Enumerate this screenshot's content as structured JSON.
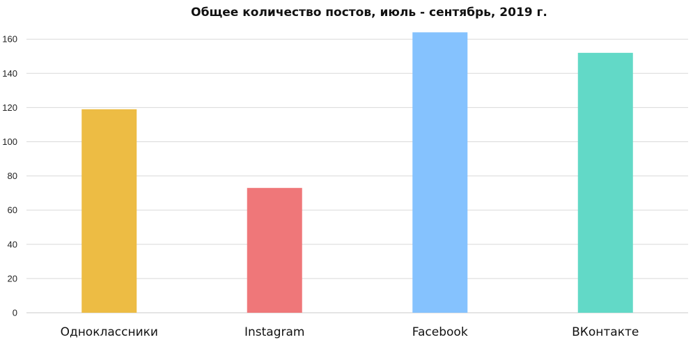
{
  "chart_data": {
    "type": "bar",
    "title": "Общее количество постов, июль - сентябрь, 2019 г.",
    "xlabel": "",
    "ylabel": "",
    "categories": [
      "Одноклассники",
      "Instagram",
      "Facebook",
      "ВКонтакте"
    ],
    "values": [
      119,
      73,
      164,
      152
    ],
    "colors": [
      "#edbc44",
      "#ef7779",
      "#85c2fe",
      "#62d9c7"
    ],
    "ylim": [
      0,
      170
    ],
    "yticks": [
      0,
      20,
      40,
      60,
      80,
      100,
      120,
      140,
      160
    ],
    "grid": true,
    "legend": "none"
  }
}
